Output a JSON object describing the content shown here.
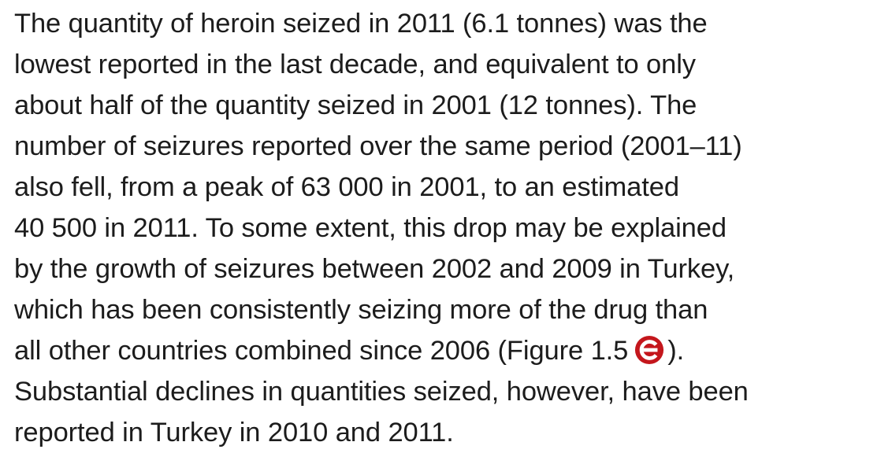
{
  "paragraph": {
    "lines": [
      "The quantity of heroin seized in 2011 (6.1 tonnes) was the",
      "lowest reported in the last decade, and equivalent to only",
      "about half of the quantity seized in 2001 (12 tonnes). The",
      "number of seizures reported over the same period (2001–11)",
      "also fell, from a peak of 63 000 in 2001, to an estimated",
      "40 500 in 2011. To some extent, this drop may be explained",
      "by the growth of seizures between 2002 and 2009 in Turkey,",
      "which has been consistently seizing more of the drug than",
      "all other countries combined since 2006 (Figure 1.5",
      "Substantial declines in quantities seized, however, have been",
      "reported in Turkey in 2010 and 2011."
    ],
    "link_suffix": ")."
  }
}
